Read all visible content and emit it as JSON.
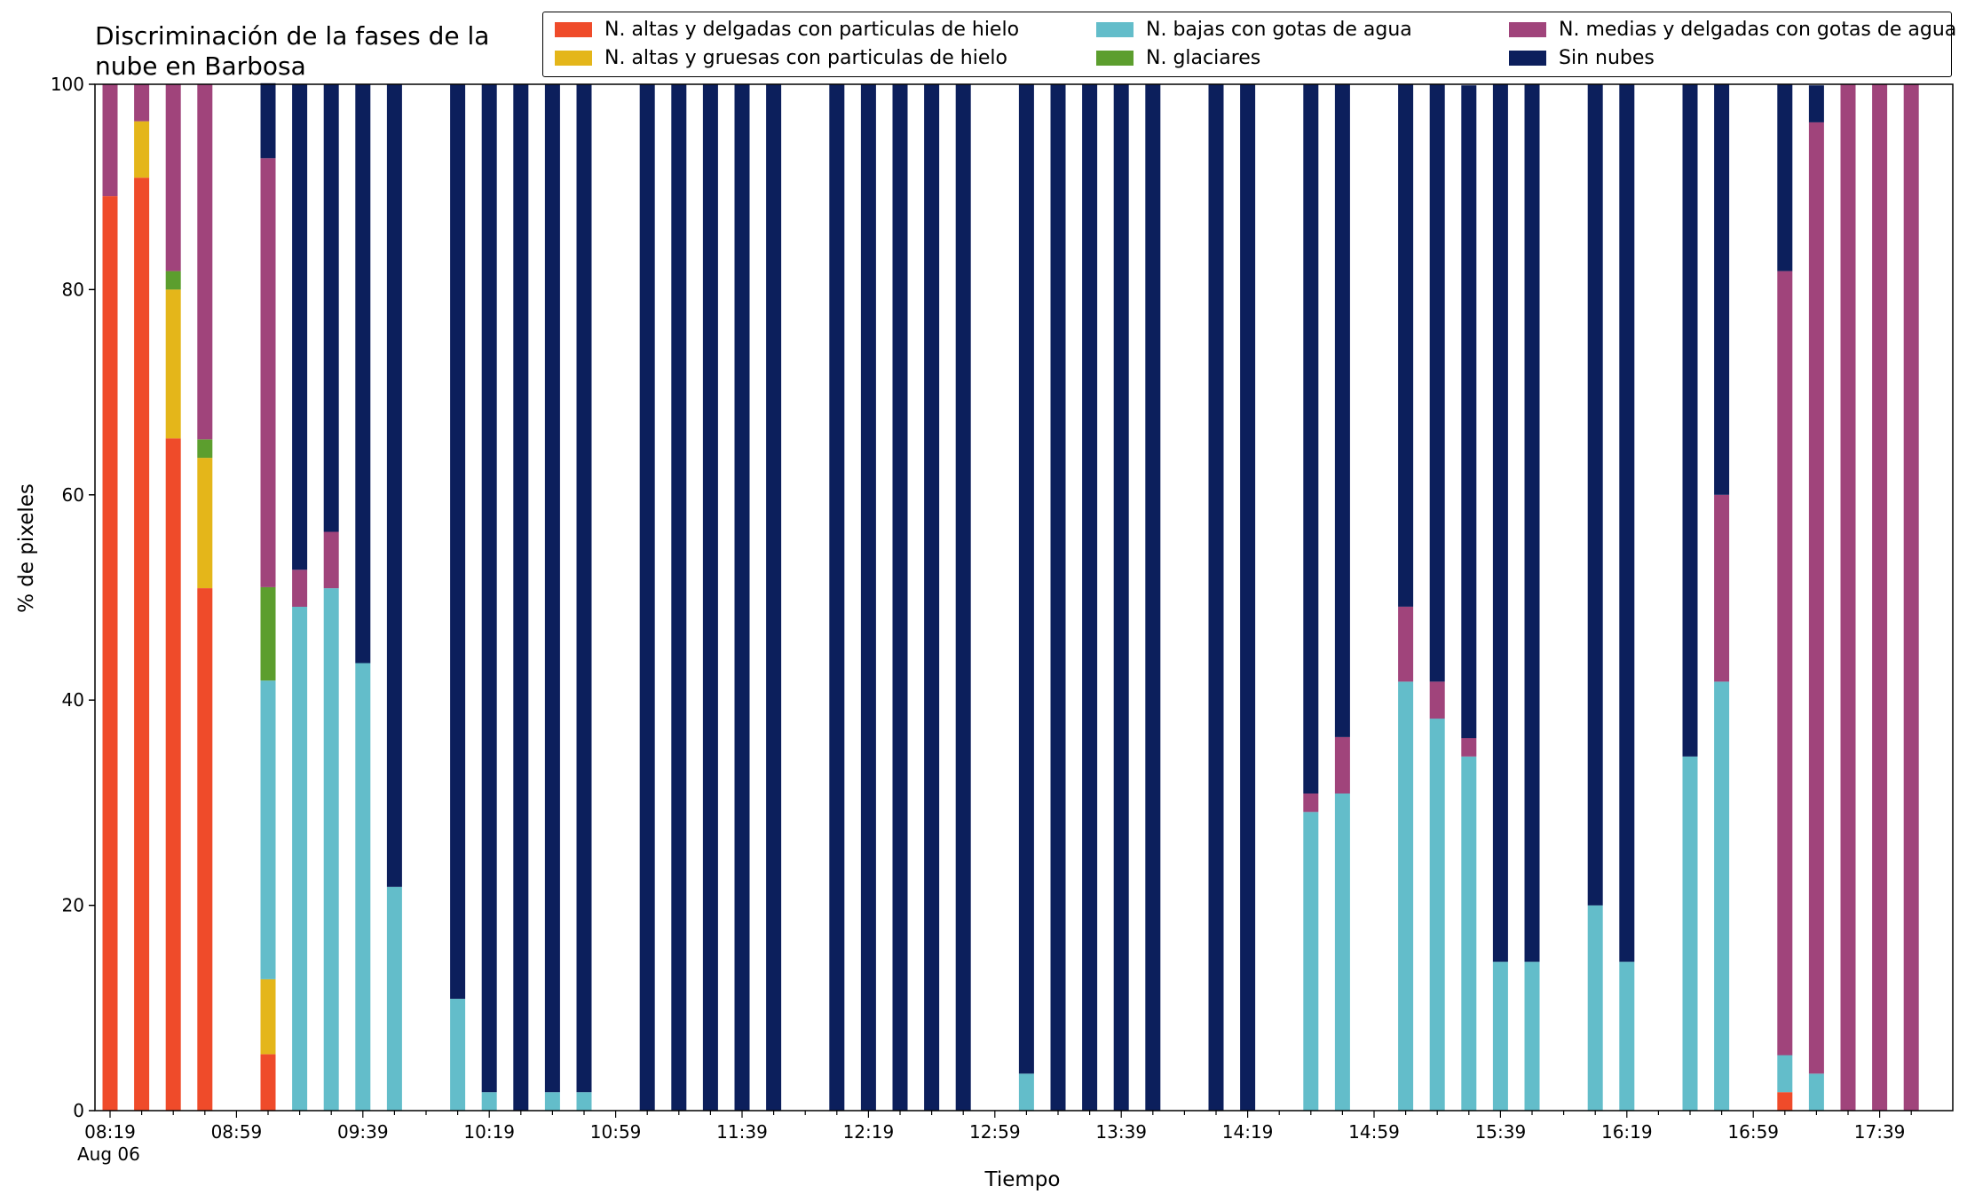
{
  "chart_data": {
    "type": "bar",
    "stacked": true,
    "title": "Discriminación de la fases de la\nnube en Barbosa",
    "xlabel": "Tiempo",
    "ylabel": "% de pixeles",
    "ylim": [
      0,
      100
    ],
    "yticks": [
      0,
      20,
      40,
      60,
      80,
      100
    ],
    "grid": false,
    "legend_position": "top-right",
    "x_tick_labels": [
      "08:19",
      "08:59",
      "09:39",
      "10:19",
      "10:59",
      "11:39",
      "12:19",
      "12:59",
      "13:39",
      "14:19",
      "14:59",
      "15:39",
      "16:19",
      "16:59",
      "17:39"
    ],
    "x_date_label": "Aug 06",
    "x": [
      "08:19",
      "08:29",
      "08:39",
      "08:49",
      "08:59",
      "09:09",
      "09:19",
      "09:29",
      "09:39",
      "09:49",
      "09:59",
      "10:09",
      "10:19",
      "10:29",
      "10:39",
      "10:49",
      "10:59",
      "11:09",
      "11:19",
      "11:29",
      "11:39",
      "11:49",
      "11:59",
      "12:09",
      "12:19",
      "12:29",
      "12:39",
      "12:49",
      "12:59",
      "13:09",
      "13:19",
      "13:29",
      "13:39",
      "13:49",
      "13:59",
      "14:09",
      "14:19",
      "14:29",
      "14:39",
      "14:49",
      "14:59",
      "15:09",
      "15:19",
      "15:29",
      "15:39",
      "15:49",
      "15:59",
      "16:09",
      "16:19",
      "16:29",
      "16:39",
      "16:49",
      "16:59",
      "17:09",
      "17:19",
      "17:29",
      "17:39",
      "17:49"
    ],
    "series": [
      {
        "name": "N. altas y delgadas con particulas de hielo",
        "color": "#ef4b2a",
        "values": [
          89.1,
          90.9,
          65.5,
          50.9,
          null,
          5.5,
          0,
          0,
          0,
          0,
          null,
          0,
          0,
          0,
          0,
          0,
          null,
          0,
          0,
          0,
          0,
          0,
          null,
          0,
          0,
          0,
          0,
          0,
          null,
          0,
          0,
          0,
          0,
          0,
          null,
          0,
          0,
          null,
          0,
          0,
          null,
          0,
          0,
          0,
          0,
          0,
          null,
          0,
          0,
          null,
          0,
          0,
          null,
          1.8,
          0,
          0,
          0,
          0
        ]
      },
      {
        "name": "N. altas y gruesas con particulas de hielo",
        "color": "#e4b61a",
        "values": [
          0,
          5.5,
          14.5,
          12.7,
          null,
          7.3,
          0,
          0,
          0,
          0,
          null,
          0,
          0,
          0,
          0,
          0,
          null,
          0,
          0,
          0,
          0,
          0,
          null,
          0,
          0,
          0,
          0,
          0,
          null,
          0,
          0,
          0,
          0,
          0,
          null,
          0,
          0,
          null,
          0,
          0,
          null,
          0,
          0,
          0,
          0,
          0,
          null,
          0,
          0,
          null,
          0,
          0,
          null,
          0,
          0,
          0,
          0,
          0
        ]
      },
      {
        "name": "N. bajas con gotas de agua",
        "color": "#63bdca",
        "values": [
          0,
          0,
          0,
          0,
          null,
          29.1,
          49.1,
          50.9,
          43.6,
          21.8,
          null,
          10.9,
          1.8,
          0,
          1.8,
          1.8,
          null,
          0,
          0,
          0,
          0,
          0,
          null,
          0,
          0,
          0,
          0,
          0,
          null,
          3.6,
          0,
          0,
          0,
          0,
          null,
          0,
          0,
          null,
          29.1,
          30.9,
          null,
          41.8,
          38.2,
          34.5,
          14.5,
          14.5,
          null,
          20.0,
          14.5,
          null,
          34.5,
          41.8,
          null,
          3.6,
          3.6,
          0,
          0,
          0
        ]
      },
      {
        "name": "N. glaciares",
        "color": "#5c9e2e",
        "values": [
          0,
          0,
          1.8,
          1.8,
          null,
          9.1,
          0,
          0,
          0,
          0,
          null,
          0,
          0,
          0,
          0,
          0,
          null,
          0,
          0,
          0,
          0,
          0,
          null,
          0,
          0,
          0,
          0,
          0,
          null,
          0,
          0,
          0,
          0,
          0,
          null,
          0,
          0,
          null,
          0,
          0,
          null,
          0,
          0,
          0,
          0,
          0,
          null,
          0,
          0,
          null,
          0,
          0,
          null,
          0,
          0,
          0,
          0,
          0
        ]
      },
      {
        "name": "N. medias y delgadas con gotas de agua",
        "color": "#a0447b",
        "values": [
          10.9,
          3.6,
          18.2,
          34.6,
          null,
          41.8,
          3.6,
          5.5,
          0,
          0,
          null,
          0,
          0,
          0,
          0,
          0,
          null,
          0,
          0,
          0,
          0,
          0,
          null,
          0,
          0,
          0,
          0,
          0,
          null,
          0,
          0,
          0,
          0,
          0,
          null,
          0,
          0,
          null,
          1.8,
          5.5,
          null,
          7.3,
          3.6,
          1.8,
          0,
          0,
          null,
          0,
          0,
          null,
          0,
          18.2,
          null,
          76.4,
          92.7,
          100,
          100,
          100
        ]
      },
      {
        "name": "Sin nubes",
        "color": "#0c1f5c",
        "values": [
          0,
          0,
          0,
          0,
          null,
          7.3,
          47.3,
          43.6,
          56.4,
          78.2,
          null,
          89.1,
          98.2,
          100,
          98.2,
          98.2,
          null,
          100,
          100,
          100,
          100,
          100,
          null,
          100,
          100,
          100,
          100,
          100,
          null,
          96.4,
          100,
          100,
          100,
          100,
          null,
          100,
          100,
          null,
          69.1,
          63.6,
          null,
          50.9,
          58.2,
          63.6,
          85.5,
          85.5,
          null,
          80.0,
          85.5,
          null,
          65.5,
          40.0,
          null,
          18.2,
          3.6,
          0,
          0,
          0
        ]
      }
    ]
  }
}
